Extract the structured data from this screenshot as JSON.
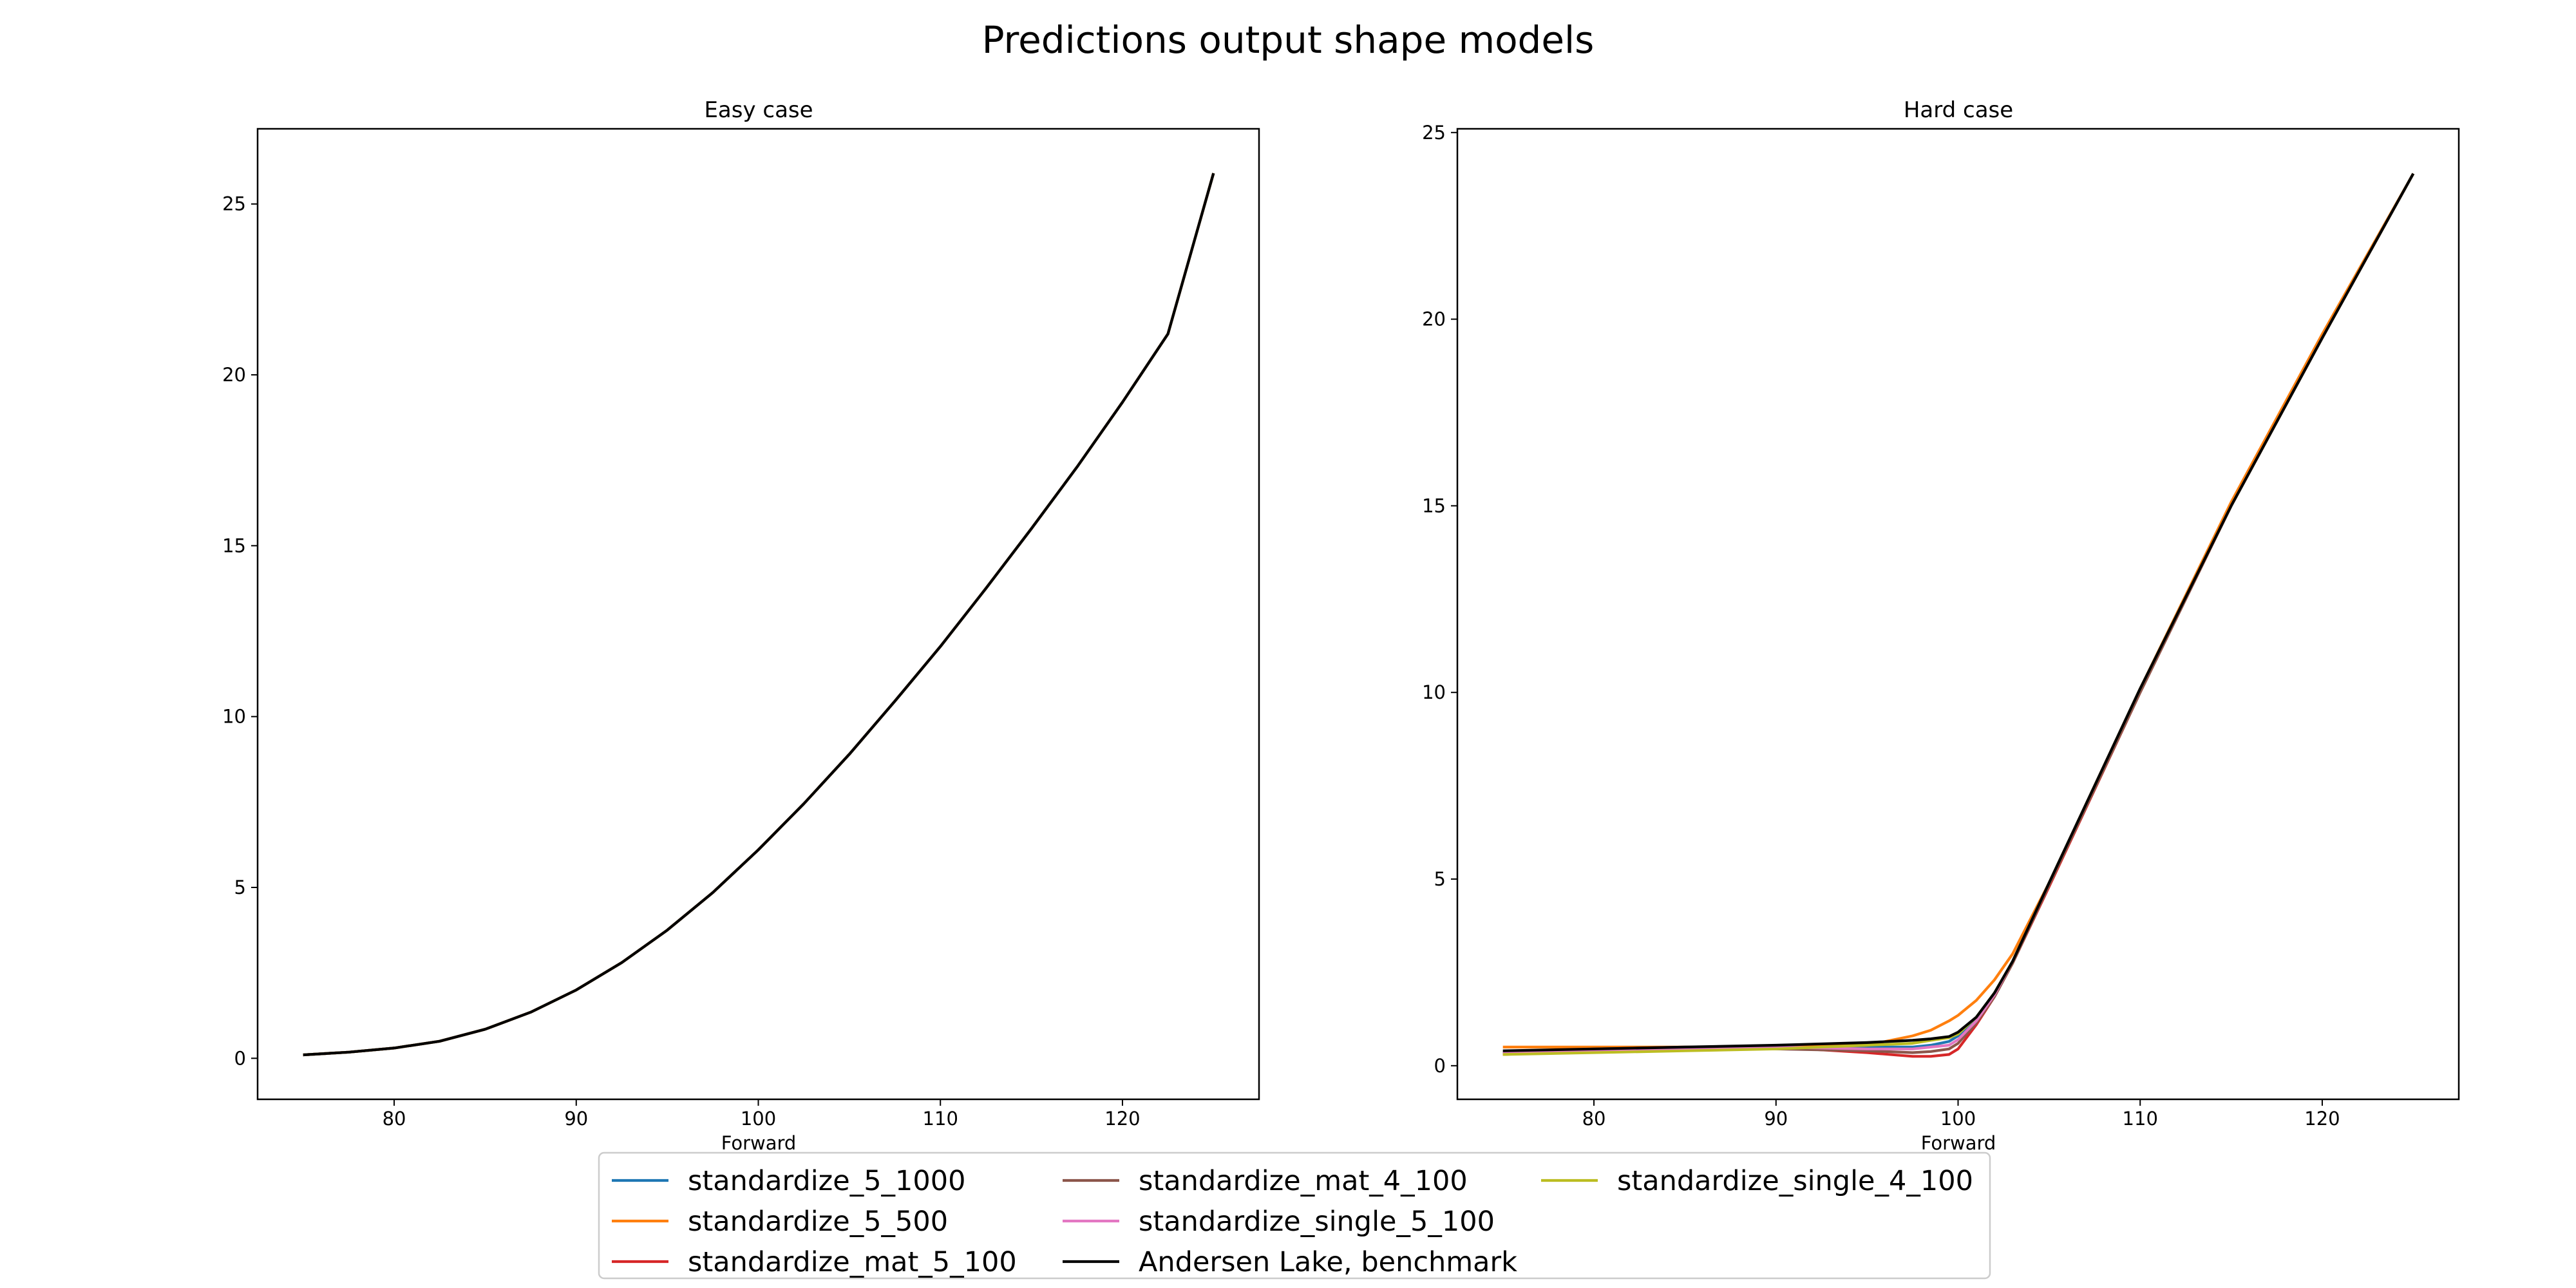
{
  "figure": {
    "title": "Predictions output shape models"
  },
  "colors": {
    "standardize_5_1000": "#1f77b4",
    "standardize_5_500": "#ff7f0e",
    "standardize_mat_5_100": "#d62728",
    "standardize_mat_4_100": "#8c564b",
    "standardize_single_5_100": "#e377c2",
    "standardize_single_4_100": "#bcbd22",
    "benchmark": "#000000"
  },
  "legend": {
    "placement": "bottom-center",
    "columns": 3,
    "entries": [
      {
        "label": "standardize_5_1000",
        "color": "#1f77b4"
      },
      {
        "label": "standardize_5_500",
        "color": "#ff7f0e"
      },
      {
        "label": "standardize_mat_5_100",
        "color": "#d62728"
      },
      {
        "label": "standardize_mat_4_100",
        "color": "#8c564b"
      },
      {
        "label": "standardize_single_5_100",
        "color": "#e377c2"
      },
      {
        "label": "Andersen Lake, benchmark",
        "color": "#000000"
      },
      {
        "label": "standardize_single_4_100",
        "color": "#bcbd22"
      }
    ]
  },
  "chart_data": [
    {
      "type": "line",
      "title": "Easy case",
      "xlabel": "Forward",
      "ylabel": "",
      "xlim": [
        72.5,
        127.5
      ],
      "ylim": [
        -1.2,
        27.2
      ],
      "xticks": [
        80,
        90,
        100,
        110,
        120
      ],
      "yticks": [
        0,
        5,
        10,
        15,
        20,
        25
      ],
      "grid": false,
      "x": [
        75,
        77.5,
        80,
        82.5,
        85,
        87.5,
        90,
        92.5,
        95,
        97.5,
        100,
        102.5,
        105,
        107.5,
        110,
        112.5,
        115,
        117.5,
        120,
        122.5,
        125
      ],
      "series": [
        {
          "name": "standardize_5_1000",
          "color": "#1f77b4",
          "values": [
            0.1,
            0.18,
            0.3,
            0.5,
            0.85,
            1.35,
            2.0,
            2.8,
            3.75,
            4.85,
            6.1,
            7.45,
            8.9,
            10.45,
            12.05,
            13.75,
            15.5,
            17.3,
            19.2,
            21.2,
            25.9
          ]
        },
        {
          "name": "standardize_5_500",
          "color": "#ff7f0e",
          "values": [
            0.1,
            0.18,
            0.3,
            0.5,
            0.85,
            1.35,
            2.0,
            2.8,
            3.75,
            4.85,
            6.1,
            7.45,
            8.9,
            10.45,
            12.05,
            13.75,
            15.5,
            17.3,
            19.2,
            21.2,
            25.9
          ]
        },
        {
          "name": "standardize_mat_5_100",
          "color": "#d62728",
          "values": [
            0.1,
            0.18,
            0.3,
            0.5,
            0.85,
            1.35,
            2.0,
            2.8,
            3.75,
            4.85,
            6.1,
            7.45,
            8.9,
            10.45,
            12.05,
            13.75,
            15.5,
            17.3,
            19.2,
            21.2,
            25.9
          ]
        },
        {
          "name": "standardize_mat_4_100",
          "color": "#8c564b",
          "values": [
            0.1,
            0.18,
            0.3,
            0.5,
            0.85,
            1.35,
            2.0,
            2.8,
            3.75,
            4.85,
            6.1,
            7.45,
            8.9,
            10.45,
            12.05,
            13.75,
            15.5,
            17.3,
            19.2,
            21.2,
            25.9
          ]
        },
        {
          "name": "standardize_single_5_100",
          "color": "#e377c2",
          "values": [
            0.1,
            0.18,
            0.3,
            0.5,
            0.85,
            1.35,
            2.0,
            2.8,
            3.75,
            4.85,
            6.1,
            7.45,
            8.9,
            10.45,
            12.05,
            13.75,
            15.5,
            17.3,
            19.2,
            21.2,
            25.9
          ]
        },
        {
          "name": "standardize_single_4_100",
          "color": "#bcbd22",
          "values": [
            0.1,
            0.18,
            0.3,
            0.5,
            0.85,
            1.35,
            2.0,
            2.8,
            3.75,
            4.85,
            6.1,
            7.45,
            8.9,
            10.45,
            12.05,
            13.75,
            15.5,
            17.3,
            19.2,
            21.2,
            25.9
          ]
        },
        {
          "name": "Andersen Lake, benchmark",
          "color": "#000000",
          "values": [
            0.1,
            0.18,
            0.3,
            0.5,
            0.85,
            1.35,
            2.0,
            2.8,
            3.75,
            4.85,
            6.1,
            7.45,
            8.9,
            10.45,
            12.05,
            13.75,
            15.5,
            17.3,
            19.2,
            21.2,
            25.9
          ]
        }
      ]
    },
    {
      "type": "line",
      "title": "Hard case",
      "xlabel": "Forward",
      "ylabel": "",
      "xlim": [
        72.5,
        127.5
      ],
      "ylim": [
        -0.9,
        25.1
      ],
      "xticks": [
        80,
        90,
        100,
        110,
        120
      ],
      "yticks": [
        0,
        5,
        10,
        15,
        20,
        25
      ],
      "grid": false,
      "x": [
        75,
        80,
        85,
        90,
        95,
        97.5,
        98.5,
        99.5,
        100,
        101,
        102,
        103,
        105,
        110,
        115,
        120,
        125
      ],
      "series": [
        {
          "name": "standardize_5_1000",
          "color": "#1f77b4",
          "values": [
            0.35,
            0.42,
            0.48,
            0.5,
            0.5,
            0.5,
            0.55,
            0.65,
            0.8,
            1.25,
            1.9,
            2.8,
            4.9,
            10.1,
            15.0,
            19.5,
            23.9
          ]
        },
        {
          "name": "standardize_5_500",
          "color": "#ff7f0e",
          "values": [
            0.5,
            0.5,
            0.5,
            0.5,
            0.55,
            0.8,
            0.95,
            1.2,
            1.35,
            1.75,
            2.3,
            3.0,
            4.9,
            10.1,
            15.1,
            19.6,
            23.9
          ]
        },
        {
          "name": "standardize_mat_5_100",
          "color": "#d62728",
          "values": [
            0.3,
            0.4,
            0.45,
            0.5,
            0.35,
            0.25,
            0.25,
            0.3,
            0.45,
            1.1,
            1.85,
            2.75,
            4.8,
            10.0,
            15.0,
            19.5,
            23.9
          ]
        },
        {
          "name": "standardize_mat_4_100",
          "color": "#8c564b",
          "values": [
            0.35,
            0.45,
            0.5,
            0.45,
            0.4,
            0.35,
            0.38,
            0.45,
            0.6,
            1.15,
            1.85,
            2.75,
            4.85,
            10.0,
            15.0,
            19.5,
            23.9
          ]
        },
        {
          "name": "standardize_single_5_100",
          "color": "#e377c2",
          "values": [
            0.35,
            0.4,
            0.45,
            0.5,
            0.45,
            0.45,
            0.5,
            0.55,
            0.7,
            1.2,
            1.9,
            2.8,
            4.9,
            10.1,
            15.0,
            19.5,
            23.9
          ]
        },
        {
          "name": "standardize_single_4_100",
          "color": "#bcbd22",
          "values": [
            0.3,
            0.35,
            0.4,
            0.45,
            0.55,
            0.6,
            0.68,
            0.75,
            0.85,
            1.3,
            1.95,
            2.8,
            4.9,
            10.1,
            15.0,
            19.5,
            23.9
          ]
        },
        {
          "name": "Andersen Lake, benchmark",
          "color": "#000000",
          "values": [
            0.4,
            0.45,
            0.5,
            0.55,
            0.62,
            0.68,
            0.72,
            0.78,
            0.9,
            1.3,
            1.95,
            2.8,
            4.9,
            10.1,
            15.0,
            19.5,
            23.9
          ]
        }
      ]
    }
  ]
}
